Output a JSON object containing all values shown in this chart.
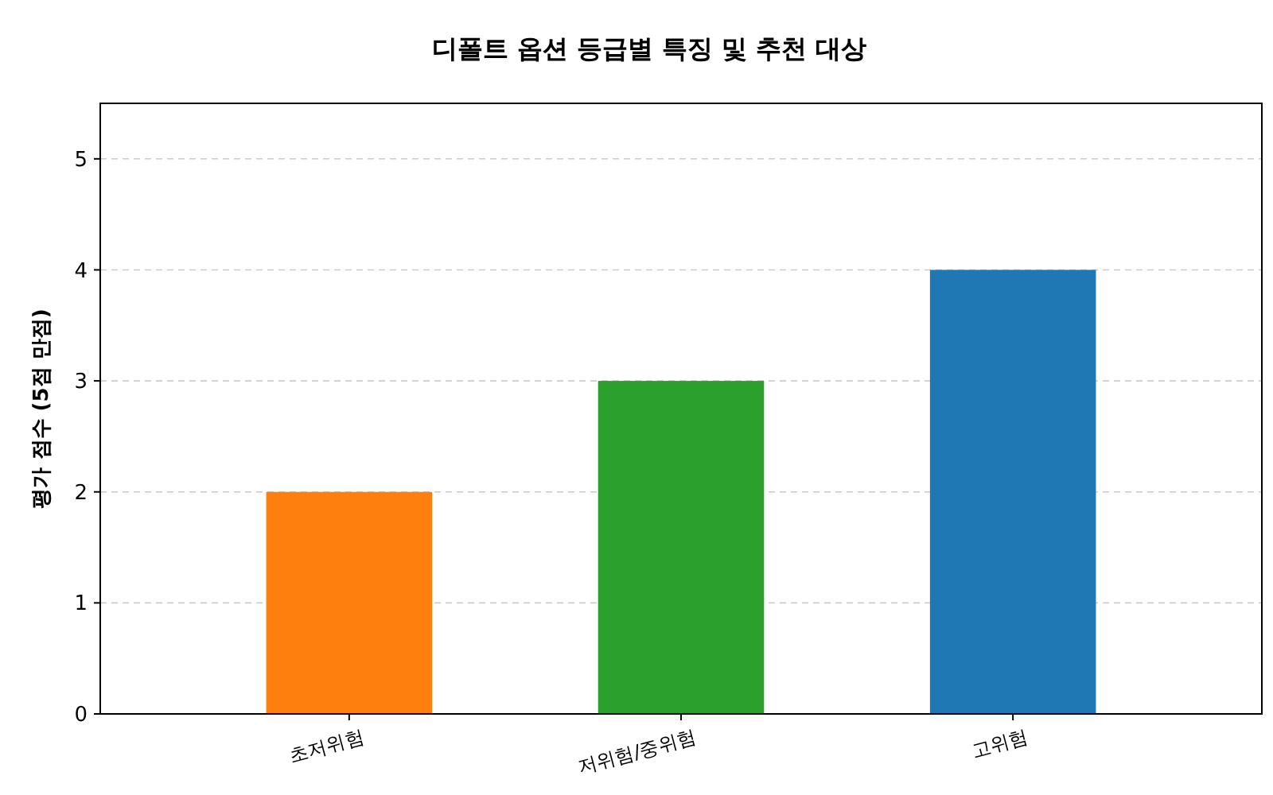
{
  "chart_data": {
    "type": "bar",
    "title": "디폴트 옵션 등급별 특징 및 추천 대상",
    "ylabel": "평가 점수 (5점 만점)",
    "categories": [
      "초저위험",
      "저위험/중위험",
      "고위험"
    ],
    "values": [
      2,
      3,
      4
    ],
    "colors": [
      "#ff7f0e",
      "#2ca02c",
      "#1f77b4"
    ],
    "ylim": [
      0,
      5.5
    ],
    "yticks": [
      0,
      1,
      2,
      3,
      4,
      5
    ],
    "grid": "y"
  }
}
